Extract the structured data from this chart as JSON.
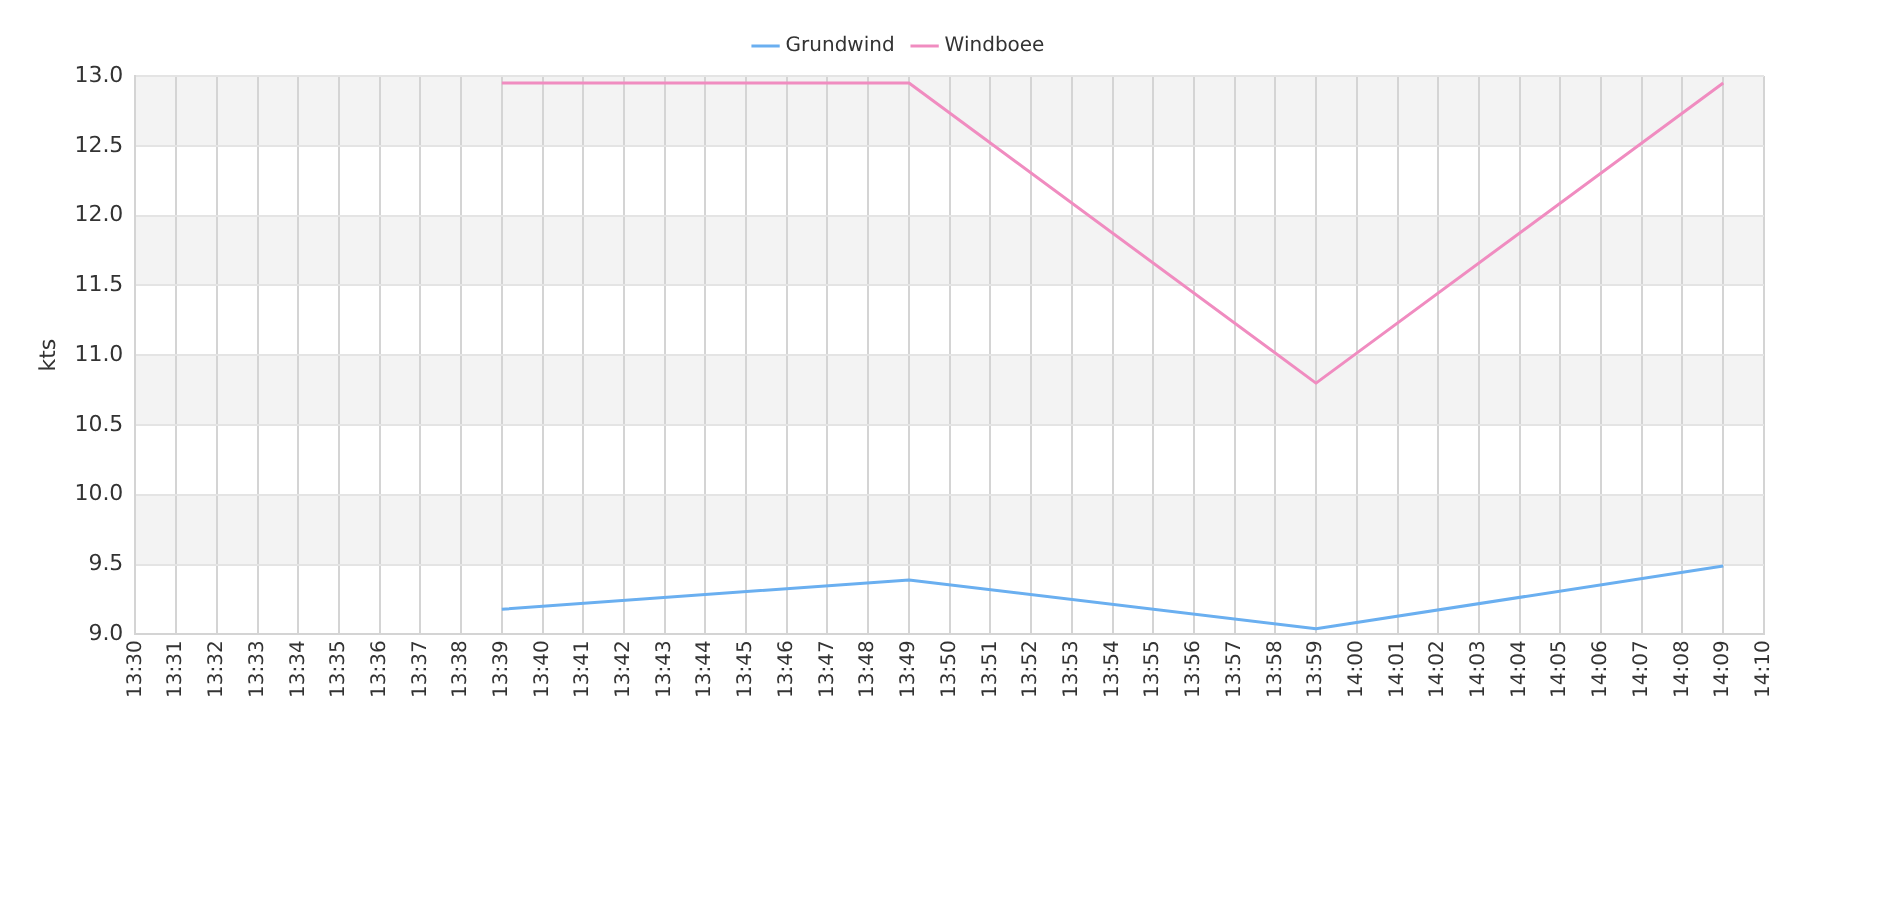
{
  "chart_data": {
    "type": "line",
    "ylabel": "kts",
    "legend": "top",
    "grid": true,
    "marker": "none",
    "line_style": "solid",
    "xlim": [
      13.5,
      14.1667
    ],
    "ylim": [
      9,
      13
    ],
    "yticks": [
      {
        "value": 9,
        "label": "9.0"
      },
      9.5,
      {
        "value": 10,
        "label": "10.0"
      },
      10.5,
      {
        "value": 11,
        "label": "11.0"
      },
      11.5,
      {
        "value": 12,
        "label": "12.0"
      },
      12.5,
      {
        "value": 13,
        "label": "13.0"
      }
    ],
    "xticks": [
      {
        "value": 13.5,
        "label": "13:30"
      },
      {
        "value": 13.5167,
        "label": "13:31"
      },
      {
        "value": 13.5333,
        "label": "13:32"
      },
      {
        "value": 13.55,
        "label": "13:33"
      },
      {
        "value": 13.5667,
        "label": "13:34"
      },
      {
        "value": 13.5833,
        "label": "13:35"
      },
      {
        "value": 13.6,
        "label": "13:36"
      },
      {
        "value": 13.6167,
        "label": "13:37"
      },
      {
        "value": 13.6333,
        "label": "13:38"
      },
      {
        "value": 13.65,
        "label": "13:39"
      },
      {
        "value": 13.6667,
        "label": "13:40"
      },
      {
        "value": 13.6833,
        "label": "13:41"
      },
      {
        "value": 13.7,
        "label": "13:42"
      },
      {
        "value": 13.7167,
        "label": "13:43"
      },
      {
        "value": 13.7333,
        "label": "13:44"
      },
      {
        "value": 13.75,
        "label": "13:45"
      },
      {
        "value": 13.7667,
        "label": "13:46"
      },
      {
        "value": 13.7833,
        "label": "13:47"
      },
      {
        "value": 13.8,
        "label": "13:48"
      },
      {
        "value": 13.8167,
        "label": "13:49"
      },
      {
        "value": 13.8333,
        "label": "13:50"
      },
      {
        "value": 13.85,
        "label": "13:51"
      },
      {
        "value": 13.8667,
        "label": "13:52"
      },
      {
        "value": 13.8833,
        "label": "13:53"
      },
      {
        "value": 13.9,
        "label": "13:54"
      },
      {
        "value": 13.9167,
        "label": "13:55"
      },
      {
        "value": 13.9333,
        "label": "13:56"
      },
      {
        "value": 13.95,
        "label": "13:57"
      },
      {
        "value": 13.9667,
        "label": "13:58"
      },
      {
        "value": 13.9833,
        "label": "13:59"
      },
      {
        "value": 14,
        "label": "14:00"
      },
      {
        "value": 14.0167,
        "label": "14:01"
      },
      {
        "value": 14.0333,
        "label": "14:02"
      },
      {
        "value": 14.05,
        "label": "14:03"
      },
      {
        "value": 14.0667,
        "label": "14:04"
      },
      {
        "value": 14.0833,
        "label": "14:05"
      },
      {
        "value": 14.1,
        "label": "14:06"
      },
      {
        "value": 14.1167,
        "label": "14:07"
      },
      {
        "value": 14.1333,
        "label": "14:08"
      },
      {
        "value": 14.15,
        "label": "14:09"
      },
      {
        "value": 14.1667,
        "label": "14:10"
      }
    ],
    "bands": [
      {
        "axis": "y",
        "from": 9.5,
        "to": 10,
        "color": "#f3f3f3"
      },
      {
        "axis": "y",
        "from": 10.5,
        "to": 11,
        "color": "#f3f3f3"
      },
      {
        "axis": "y",
        "from": 11.5,
        "to": 12,
        "color": "#f3f3f3"
      },
      {
        "axis": "y",
        "from": 12.5,
        "to": 13,
        "color": "#f3f3f3"
      }
    ],
    "series": [
      {
        "name": "Grundwind",
        "color": "#6aaff0",
        "x": [
          13.65,
          13.8167,
          13.9833,
          14.15
        ],
        "values": [
          9.18,
          9.39,
          9.04,
          9.49
        ]
      },
      {
        "name": "Windboee",
        "color": "#f08cc0",
        "x": [
          13.65,
          13.8167,
          13.9833,
          14.15
        ],
        "values": [
          12.95,
          12.95,
          10.8,
          12.95
        ]
      }
    ]
  }
}
